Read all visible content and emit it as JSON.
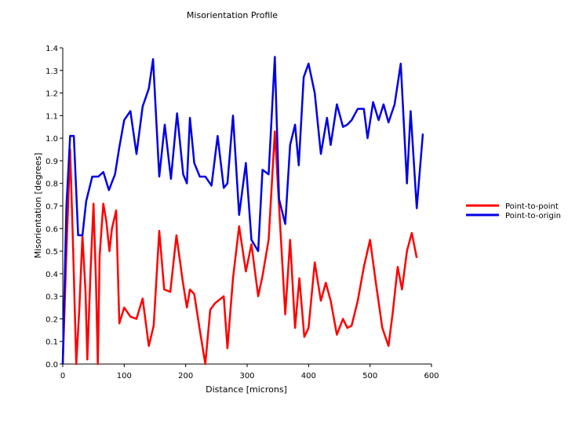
{
  "chart_data": {
    "type": "line",
    "title": "Misorientation Profile",
    "xlabel": "Distance [microns]",
    "ylabel": "Misorientation [degrees]",
    "xlim": [
      0,
      600
    ],
    "ylim": [
      0,
      1.4
    ],
    "x_ticks": [
      "0",
      "100",
      "200",
      "300",
      "400",
      "500",
      "600"
    ],
    "y_ticks": [
      "0.0",
      "0.1",
      "0.2",
      "0.3",
      "0.4",
      "0.5",
      "0.6",
      "0.7",
      "0.8",
      "0.9",
      "1.0",
      "1.1",
      "1.2",
      "1.3",
      "1.4"
    ],
    "grid": false,
    "legend_position": "right",
    "series": [
      {
        "name": "Point-to-point",
        "color": "#ff0000",
        "points": [
          [
            0,
            0.0
          ],
          [
            6,
            0.5
          ],
          [
            12,
            0.95
          ],
          [
            17,
            0.5
          ],
          [
            22,
            0.0
          ],
          [
            27,
            0.25
          ],
          [
            32,
            0.57
          ],
          [
            37,
            0.32
          ],
          [
            40,
            0.02
          ],
          [
            45,
            0.4
          ],
          [
            50,
            0.71
          ],
          [
            54,
            0.37
          ],
          [
            57,
            0.0
          ],
          [
            60,
            0.48
          ],
          [
            66,
            0.71
          ],
          [
            71,
            0.63
          ],
          [
            76,
            0.5
          ],
          [
            80,
            0.6
          ],
          [
            87,
            0.68
          ],
          [
            92,
            0.18
          ],
          [
            100,
            0.25
          ],
          [
            110,
            0.21
          ],
          [
            120,
            0.2
          ],
          [
            130,
            0.29
          ],
          [
            140,
            0.08
          ],
          [
            148,
            0.17
          ],
          [
            157,
            0.59
          ],
          [
            165,
            0.33
          ],
          [
            175,
            0.32
          ],
          [
            185,
            0.57
          ],
          [
            195,
            0.37
          ],
          [
            202,
            0.25
          ],
          [
            207,
            0.33
          ],
          [
            214,
            0.31
          ],
          [
            223,
            0.15
          ],
          [
            232,
            0.0
          ],
          [
            240,
            0.24
          ],
          [
            248,
            0.27
          ],
          [
            262,
            0.3
          ],
          [
            268,
            0.07
          ],
          [
            277,
            0.38
          ],
          [
            287,
            0.61
          ],
          [
            298,
            0.41
          ],
          [
            307,
            0.53
          ],
          [
            318,
            0.3
          ],
          [
            325,
            0.39
          ],
          [
            335,
            0.55
          ],
          [
            345,
            1.03
          ],
          [
            352,
            0.7
          ],
          [
            362,
            0.22
          ],
          [
            370,
            0.55
          ],
          [
            378,
            0.16
          ],
          [
            385,
            0.38
          ],
          [
            393,
            0.12
          ],
          [
            400,
            0.16
          ],
          [
            410,
            0.45
          ],
          [
            420,
            0.28
          ],
          [
            428,
            0.36
          ],
          [
            436,
            0.28
          ],
          [
            446,
            0.13
          ],
          [
            456,
            0.2
          ],
          [
            463,
            0.16
          ],
          [
            470,
            0.17
          ],
          [
            480,
            0.28
          ],
          [
            490,
            0.43
          ],
          [
            500,
            0.55
          ],
          [
            510,
            0.35
          ],
          [
            520,
            0.16
          ],
          [
            530,
            0.08
          ],
          [
            537,
            0.23
          ],
          [
            545,
            0.43
          ],
          [
            552,
            0.33
          ],
          [
            560,
            0.5
          ],
          [
            568,
            0.58
          ],
          [
            576,
            0.47
          ]
        ]
      },
      {
        "name": "Point-to-origin",
        "color": "#0000e6",
        "points": [
          [
            0,
            0.0
          ],
          [
            6,
            0.7
          ],
          [
            12,
            1.01
          ],
          [
            18,
            1.01
          ],
          [
            25,
            0.57
          ],
          [
            32,
            0.57
          ],
          [
            38,
            0.72
          ],
          [
            48,
            0.83
          ],
          [
            58,
            0.83
          ],
          [
            66,
            0.85
          ],
          [
            75,
            0.77
          ],
          [
            85,
            0.84
          ],
          [
            92,
            0.96
          ],
          [
            100,
            1.08
          ],
          [
            110,
            1.12
          ],
          [
            120,
            0.93
          ],
          [
            130,
            1.14
          ],
          [
            140,
            1.22
          ],
          [
            147,
            1.35
          ],
          [
            157,
            0.83
          ],
          [
            166,
            1.06
          ],
          [
            176,
            0.82
          ],
          [
            186,
            1.11
          ],
          [
            196,
            0.84
          ],
          [
            202,
            0.8
          ],
          [
            207,
            1.09
          ],
          [
            214,
            0.89
          ],
          [
            223,
            0.83
          ],
          [
            232,
            0.83
          ],
          [
            242,
            0.79
          ],
          [
            252,
            1.01
          ],
          [
            262,
            0.78
          ],
          [
            268,
            0.8
          ],
          [
            277,
            1.1
          ],
          [
            287,
            0.66
          ],
          [
            298,
            0.89
          ],
          [
            307,
            0.55
          ],
          [
            318,
            0.5
          ],
          [
            325,
            0.86
          ],
          [
            335,
            0.84
          ],
          [
            345,
            1.36
          ],
          [
            352,
            0.73
          ],
          [
            362,
            0.62
          ],
          [
            370,
            0.97
          ],
          [
            378,
            1.06
          ],
          [
            384,
            0.88
          ],
          [
            392,
            1.27
          ],
          [
            400,
            1.33
          ],
          [
            410,
            1.2
          ],
          [
            420,
            0.93
          ],
          [
            430,
            1.09
          ],
          [
            436,
            0.97
          ],
          [
            446,
            1.15
          ],
          [
            456,
            1.05
          ],
          [
            463,
            1.06
          ],
          [
            470,
            1.08
          ],
          [
            480,
            1.13
          ],
          [
            490,
            1.13
          ],
          [
            496,
            1.0
          ],
          [
            505,
            1.16
          ],
          [
            514,
            1.08
          ],
          [
            522,
            1.15
          ],
          [
            530,
            1.07
          ],
          [
            540,
            1.15
          ],
          [
            550,
            1.33
          ],
          [
            560,
            0.8
          ],
          [
            566,
            1.12
          ],
          [
            576,
            0.69
          ],
          [
            586,
            1.02
          ]
        ]
      }
    ]
  }
}
